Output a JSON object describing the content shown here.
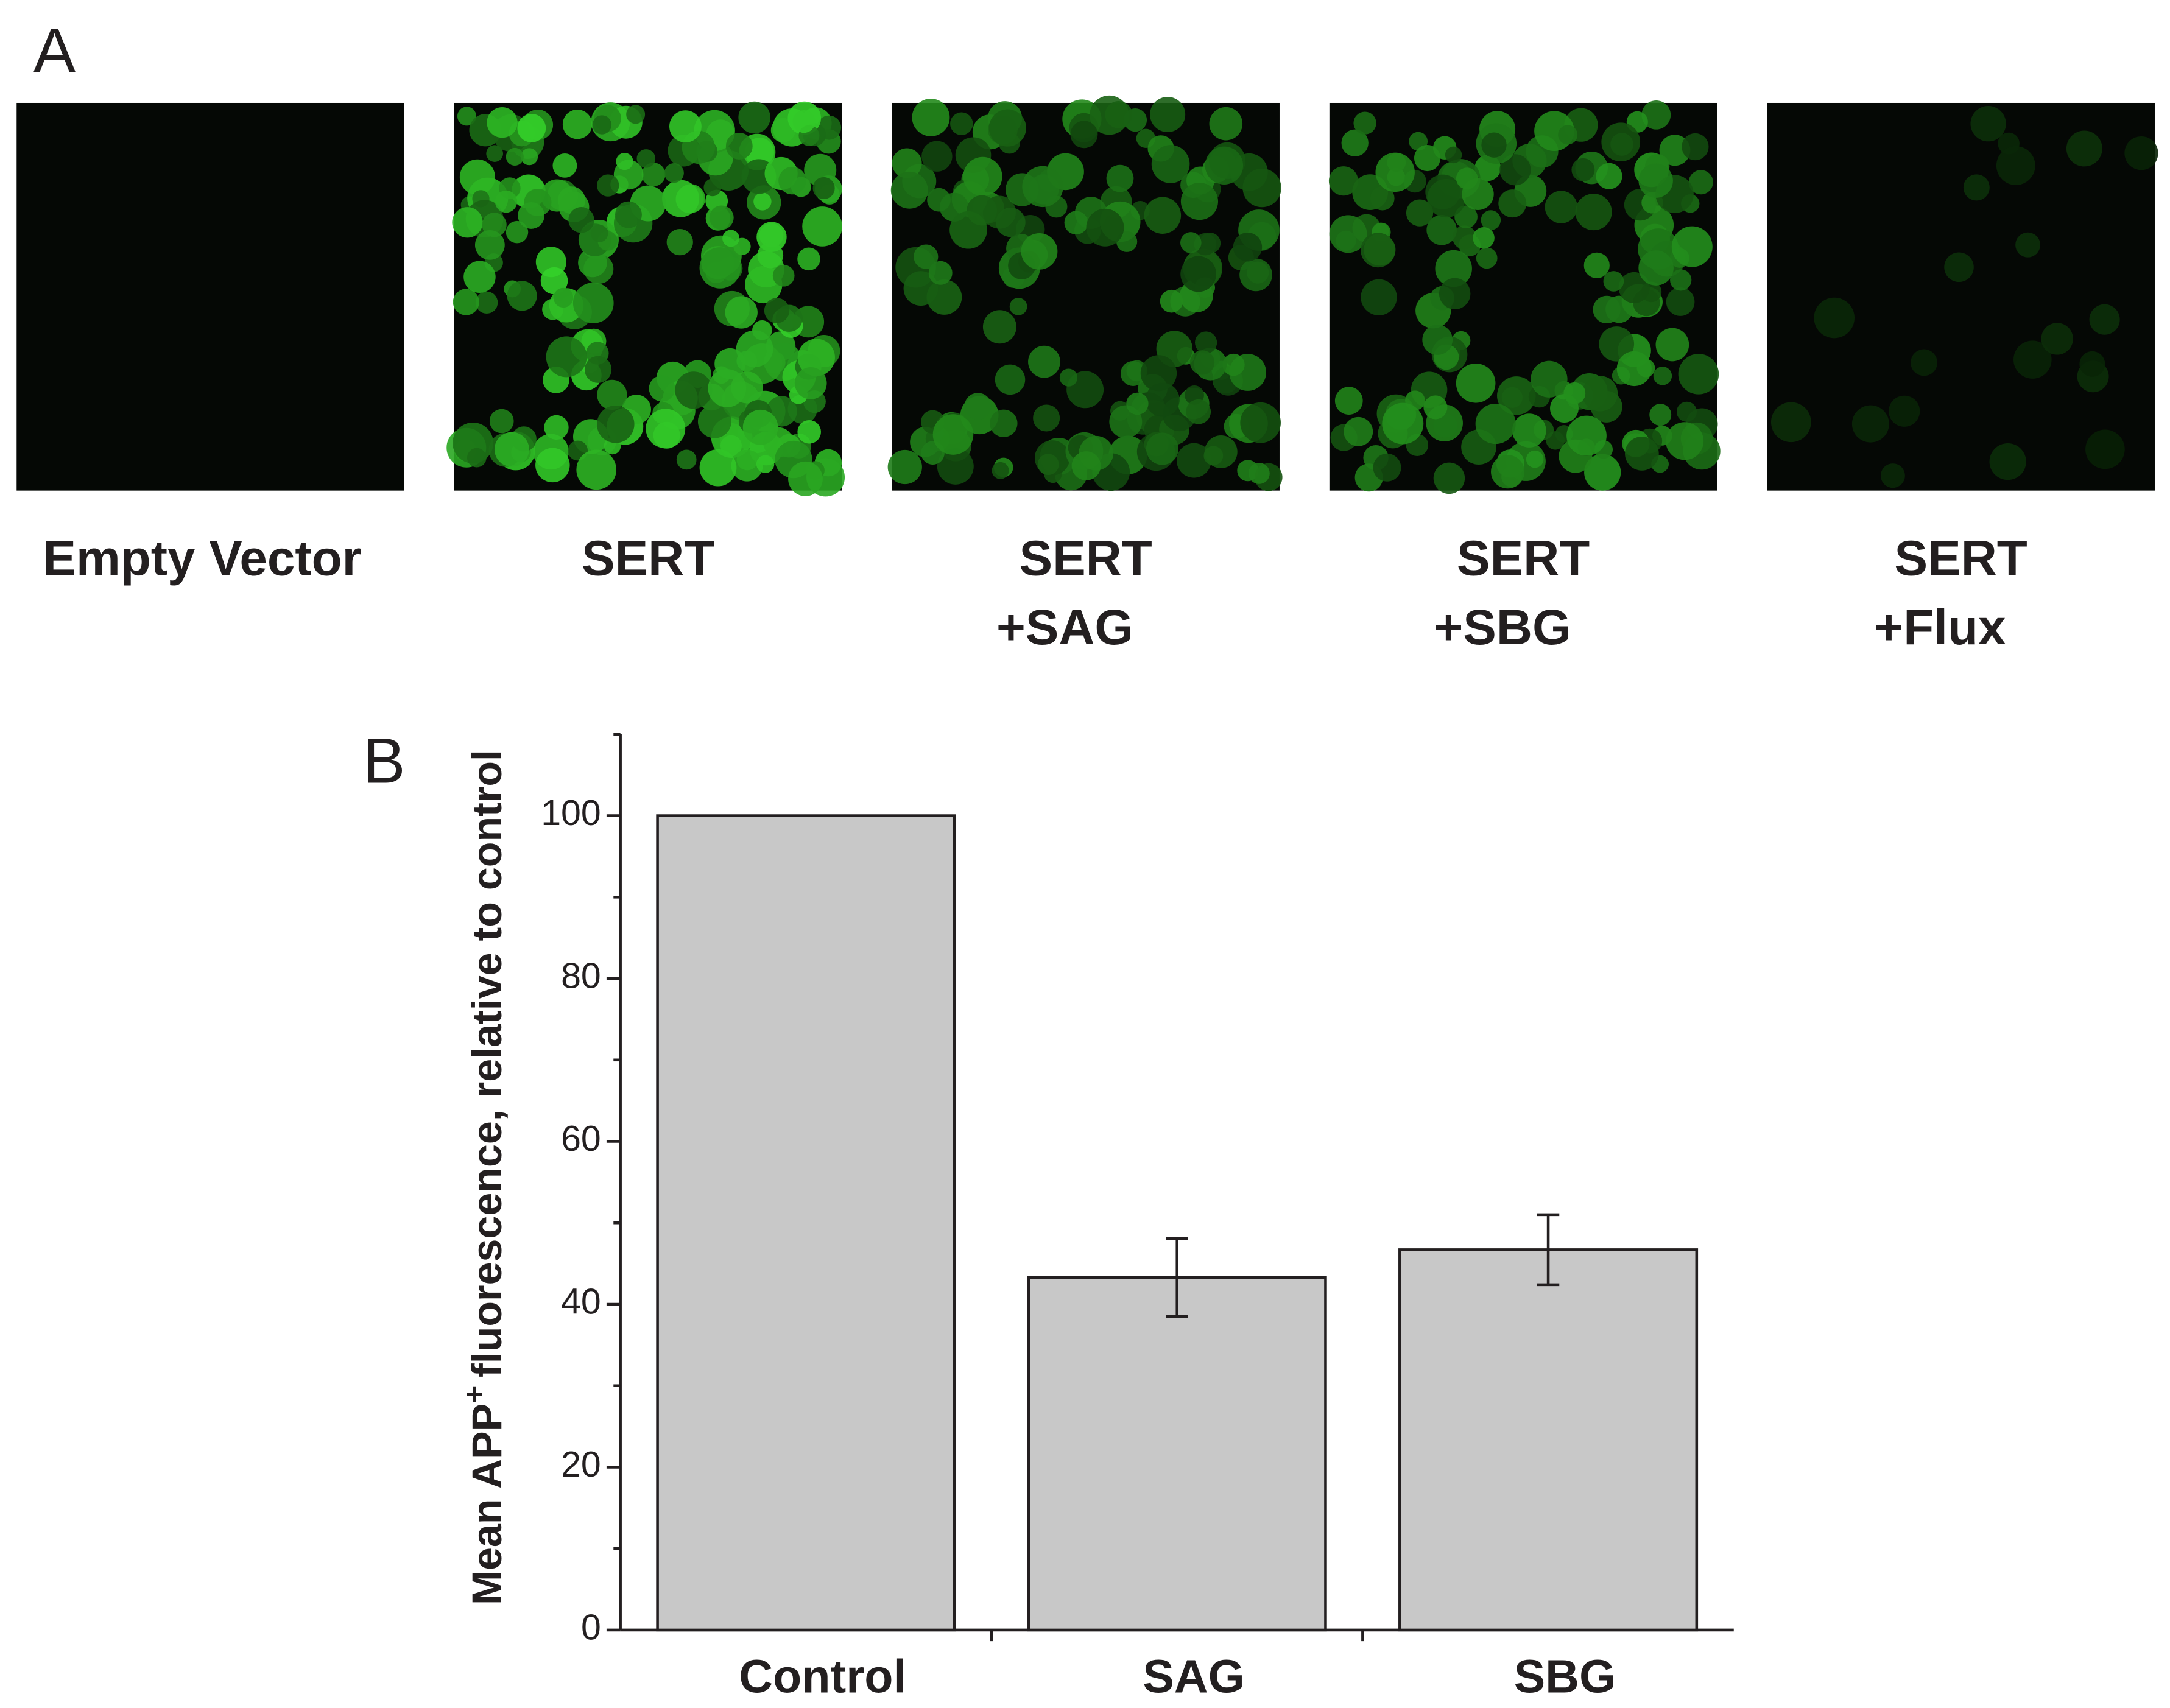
{
  "panel_a": {
    "label": "A",
    "images": [
      {
        "caption": [
          "Empty Vector"
        ]
      },
      {
        "caption": [
          "SERT"
        ]
      },
      {
        "caption": [
          "SERT",
          "+SAG"
        ]
      },
      {
        "caption": [
          "SERT",
          "+SBG"
        ]
      },
      {
        "caption": [
          "SERT",
          "+Flux"
        ]
      }
    ]
  },
  "chart_data": {
    "type": "bar",
    "panel_label": "B",
    "y_label": {
      "main": "Mean APP",
      "sup": "+",
      "rest": "fluorescence, relative to control"
    },
    "categories": [
      "Control",
      "SAG",
      "SBG"
    ],
    "values": [
      100,
      43.3,
      46.7
    ],
    "errors": [
      null,
      4.8,
      4.3
    ],
    "color": "#c8c8c8",
    "ylim": [
      0,
      110
    ],
    "yticks": [
      0,
      20,
      40,
      60,
      80,
      100
    ]
  }
}
